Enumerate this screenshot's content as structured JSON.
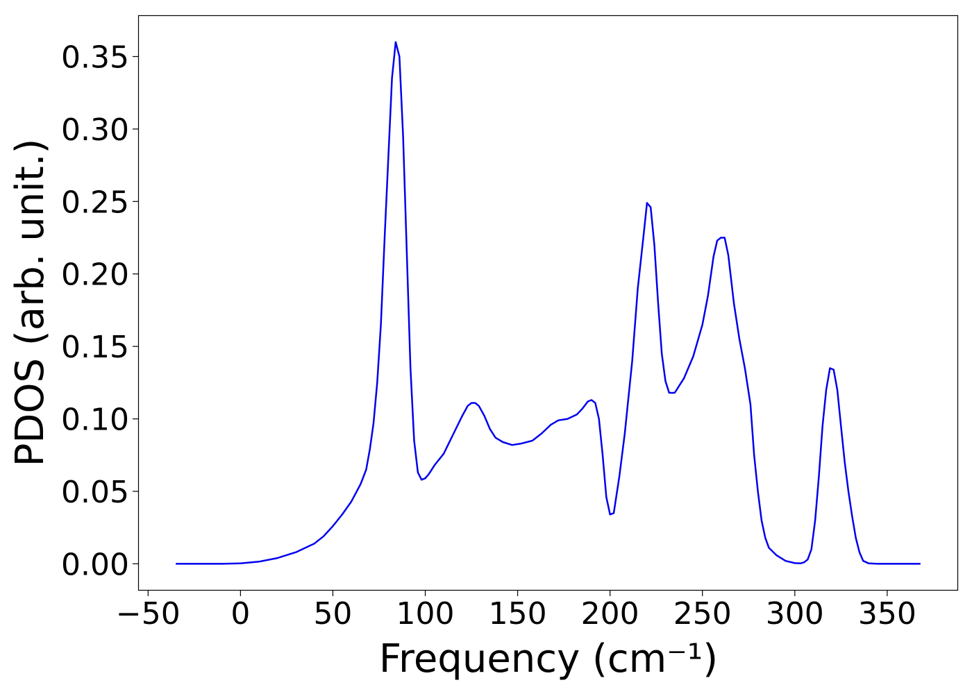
{
  "chart_data": {
    "type": "line",
    "xlabel": "Frequency (cm⁻¹)",
    "ylabel": "PDOS (arb. unit.)",
    "xlim": [
      -55,
      388
    ],
    "ylim": [
      -0.018,
      0.378
    ],
    "xticks": [
      -50,
      0,
      50,
      100,
      150,
      200,
      250,
      300,
      350
    ],
    "yticks": [
      0.0,
      0.05,
      0.1,
      0.15,
      0.2,
      0.25,
      0.3,
      0.35
    ],
    "xtick_labels": [
      "−50",
      "0",
      "50",
      "100",
      "150",
      "200",
      "250",
      "300",
      "350"
    ],
    "ytick_labels": [
      "0.00",
      "0.05",
      "0.10",
      "0.15",
      "0.20",
      "0.25",
      "0.30",
      "0.35"
    ],
    "grid": false,
    "line_color": "#0000ee",
    "series": [
      {
        "x": [
          -35,
          -10,
          0,
          10,
          20,
          30,
          40,
          45,
          50,
          55,
          60,
          65,
          68,
          70,
          72,
          74,
          76,
          78,
          80,
          82,
          84,
          86,
          88,
          90,
          92,
          94,
          96,
          98,
          100,
          102,
          105,
          110,
          115,
          120,
          123,
          125,
          127,
          129,
          132,
          135,
          138,
          142,
          147,
          152,
          158,
          163,
          168,
          172,
          177,
          182,
          185,
          188,
          190,
          192,
          194,
          196,
          198,
          200,
          202,
          205,
          208,
          212,
          215,
          218,
          220,
          222,
          224,
          226,
          228,
          230,
          232,
          235,
          240,
          245,
          250,
          253,
          256,
          258,
          260,
          262,
          264,
          267,
          270,
          273,
          276,
          278,
          280,
          282,
          284,
          286,
          290,
          295,
          300,
          303,
          305,
          307,
          309,
          311,
          313,
          315,
          317,
          319,
          321,
          323,
          325,
          327,
          329,
          331,
          333,
          335,
          337,
          340,
          345,
          350,
          368
        ],
        "y": [
          0.0,
          0.0,
          0.0003,
          0.0015,
          0.004,
          0.008,
          0.014,
          0.019,
          0.026,
          0.034,
          0.043,
          0.055,
          0.065,
          0.079,
          0.097,
          0.125,
          0.165,
          0.225,
          0.28,
          0.335,
          0.36,
          0.35,
          0.295,
          0.215,
          0.135,
          0.085,
          0.063,
          0.058,
          0.059,
          0.062,
          0.068,
          0.076,
          0.089,
          0.102,
          0.109,
          0.111,
          0.111,
          0.109,
          0.102,
          0.093,
          0.087,
          0.084,
          0.082,
          0.083,
          0.085,
          0.09,
          0.096,
          0.099,
          0.1,
          0.103,
          0.107,
          0.112,
          0.113,
          0.111,
          0.1,
          0.075,
          0.046,
          0.034,
          0.035,
          0.06,
          0.09,
          0.14,
          0.19,
          0.225,
          0.249,
          0.246,
          0.22,
          0.18,
          0.145,
          0.126,
          0.118,
          0.118,
          0.128,
          0.143,
          0.165,
          0.185,
          0.212,
          0.223,
          0.225,
          0.225,
          0.213,
          0.18,
          0.155,
          0.135,
          0.11,
          0.075,
          0.05,
          0.03,
          0.018,
          0.011,
          0.006,
          0.002,
          0.0005,
          0.0003,
          0.001,
          0.003,
          0.01,
          0.03,
          0.06,
          0.095,
          0.12,
          0.135,
          0.134,
          0.12,
          0.095,
          0.07,
          0.05,
          0.033,
          0.018,
          0.008,
          0.002,
          0.0003,
          0.0,
          0.0,
          0.0
        ]
      }
    ]
  }
}
